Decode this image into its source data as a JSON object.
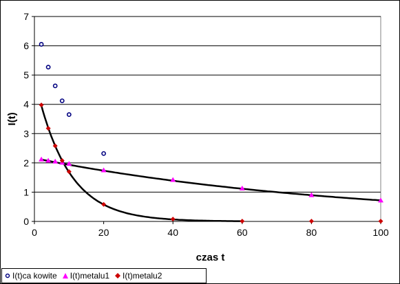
{
  "chart_data": {
    "type": "scatter",
    "title": "",
    "xlabel": "czas t",
    "ylabel": "I(t)",
    "xlim": [
      0,
      100
    ],
    "ylim": [
      0,
      7
    ],
    "xticks": [
      0,
      20,
      40,
      60,
      80,
      100
    ],
    "yticks": [
      0,
      1,
      2,
      3,
      4,
      5,
      6,
      7
    ],
    "grid": "horizontal",
    "legend_position": "bottom-left",
    "series": [
      {
        "name": "I(t)ca kowite",
        "marker": "circle-open",
        "color": "#000080",
        "points": [
          [
            2,
            6.05
          ],
          [
            4,
            5.27
          ],
          [
            6,
            4.63
          ],
          [
            8,
            4.12
          ],
          [
            10,
            3.65
          ],
          [
            20,
            2.32
          ]
        ]
      },
      {
        "name": "I(t)metalu1",
        "marker": "triangle",
        "color": "#ff00ff",
        "points": [
          [
            2,
            2.12
          ],
          [
            4,
            2.08
          ],
          [
            6,
            2.05
          ],
          [
            8,
            2.01
          ],
          [
            10,
            1.97
          ],
          [
            20,
            1.75
          ],
          [
            40,
            1.42
          ],
          [
            60,
            1.13
          ],
          [
            80,
            0.9
          ],
          [
            100,
            0.72
          ]
        ]
      },
      {
        "name": "I(t)metalu2",
        "marker": "diamond",
        "color": "#cc0000",
        "points": [
          [
            2,
            3.98
          ],
          [
            4,
            3.18
          ],
          [
            6,
            2.58
          ],
          [
            8,
            2.08
          ],
          [
            10,
            1.7
          ],
          [
            20,
            0.58
          ],
          [
            40,
            0.08
          ],
          [
            60,
            0.01
          ],
          [
            80,
            0.01
          ],
          [
            100,
            0.01
          ]
        ]
      }
    ],
    "trendlines": [
      {
        "for_series": "I(t)metalu1",
        "color": "#000000",
        "x_range": [
          2,
          100
        ],
        "a": 2.16,
        "b": 0.011
      },
      {
        "for_series": "I(t)metalu2",
        "color": "#000000",
        "x_range": [
          2,
          60
        ],
        "a": 4.9,
        "b": 0.107
      }
    ]
  }
}
